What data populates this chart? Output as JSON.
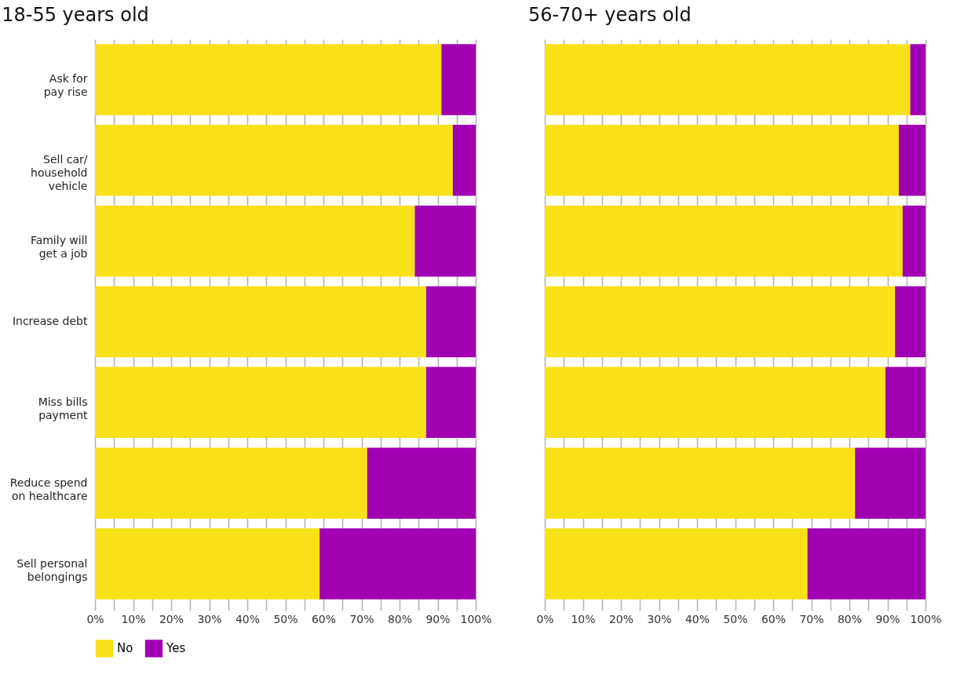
{
  "chart_data": [
    {
      "type": "bar",
      "orientation": "horizontal",
      "stacked": true,
      "title": "18-55 years old",
      "categories": [
        "Ask for pay rise",
        "Sell car/ household vehicle",
        "Family will get a job",
        "Increase debt",
        "Miss bills payment",
        "Reduce spend on healthcare",
        "Sell personal belongings"
      ],
      "series": [
        {
          "name": "No",
          "color": "#f9e11a",
          "values": [
            91,
            94,
            84,
            87,
            87,
            71.5,
            59
          ]
        },
        {
          "name": "Yes",
          "color": "#a100b2",
          "values": [
            9,
            6,
            16,
            13,
            13,
            28.5,
            41
          ]
        }
      ],
      "xlim": [
        0,
        100
      ],
      "xticks": [
        {
          "value": 0,
          "label": "0%"
        },
        {
          "value": 5,
          "label": null
        },
        {
          "value": 10,
          "label": "10%"
        },
        {
          "value": 15,
          "label": null
        },
        {
          "value": 20,
          "label": "20%"
        },
        {
          "value": 25,
          "label": null
        },
        {
          "value": 30,
          "label": "30%"
        },
        {
          "value": 35,
          "label": null
        },
        {
          "value": 40,
          "label": "40%"
        },
        {
          "value": 45,
          "label": null
        },
        {
          "value": 50,
          "label": "50%"
        },
        {
          "value": 55,
          "label": null
        },
        {
          "value": 60,
          "label": "60%"
        },
        {
          "value": 65,
          "label": null
        },
        {
          "value": 70,
          "label": "70%"
        },
        {
          "value": 75,
          "label": null
        },
        {
          "value": 80,
          "label": "80%"
        },
        {
          "value": 85,
          "label": null
        },
        {
          "value": 90,
          "label": "90%"
        },
        {
          "value": 95,
          "label": null
        },
        {
          "value": 100,
          "label": "100%"
        }
      ],
      "grid": "x",
      "legend": "bottom"
    },
    {
      "type": "bar",
      "orientation": "horizontal",
      "stacked": true,
      "title": "56-70+ years old",
      "categories": [
        null,
        null,
        null,
        null,
        null,
        null,
        null
      ],
      "series": [
        {
          "name": "No",
          "color": "#f9e11a",
          "values": [
            96,
            93,
            94,
            92,
            89.5,
            81.5,
            69
          ]
        },
        {
          "name": "Yes",
          "color": "#a100b2",
          "values": [
            4,
            7,
            6,
            8,
            10.5,
            18.5,
            31
          ]
        }
      ],
      "xlim": [
        0,
        100
      ],
      "xticks": [
        {
          "value": 0,
          "label": "0%"
        },
        {
          "value": 5,
          "label": null
        },
        {
          "value": 10,
          "label": "10%"
        },
        {
          "value": 15,
          "label": null
        },
        {
          "value": 20,
          "label": "20%"
        },
        {
          "value": 25,
          "label": null
        },
        {
          "value": 30,
          "label": "30%"
        },
        {
          "value": 35,
          "label": null
        },
        {
          "value": 40,
          "label": "40%"
        },
        {
          "value": 45,
          "label": null
        },
        {
          "value": 50,
          "label": "50%"
        },
        {
          "value": 55,
          "label": null
        },
        {
          "value": 60,
          "label": "60%"
        },
        {
          "value": 65,
          "label": null
        },
        {
          "value": 70,
          "label": "70%"
        },
        {
          "value": 75,
          "label": null
        },
        {
          "value": 80,
          "label": "80%"
        },
        {
          "value": 85,
          "label": null
        },
        {
          "value": 90,
          "label": "90%"
        },
        {
          "value": 95,
          "label": null
        },
        {
          "value": 100,
          "label": "100%"
        }
      ],
      "grid": "x",
      "legend": "bottom",
      "tick_labels": "x"
    }
  ]
}
